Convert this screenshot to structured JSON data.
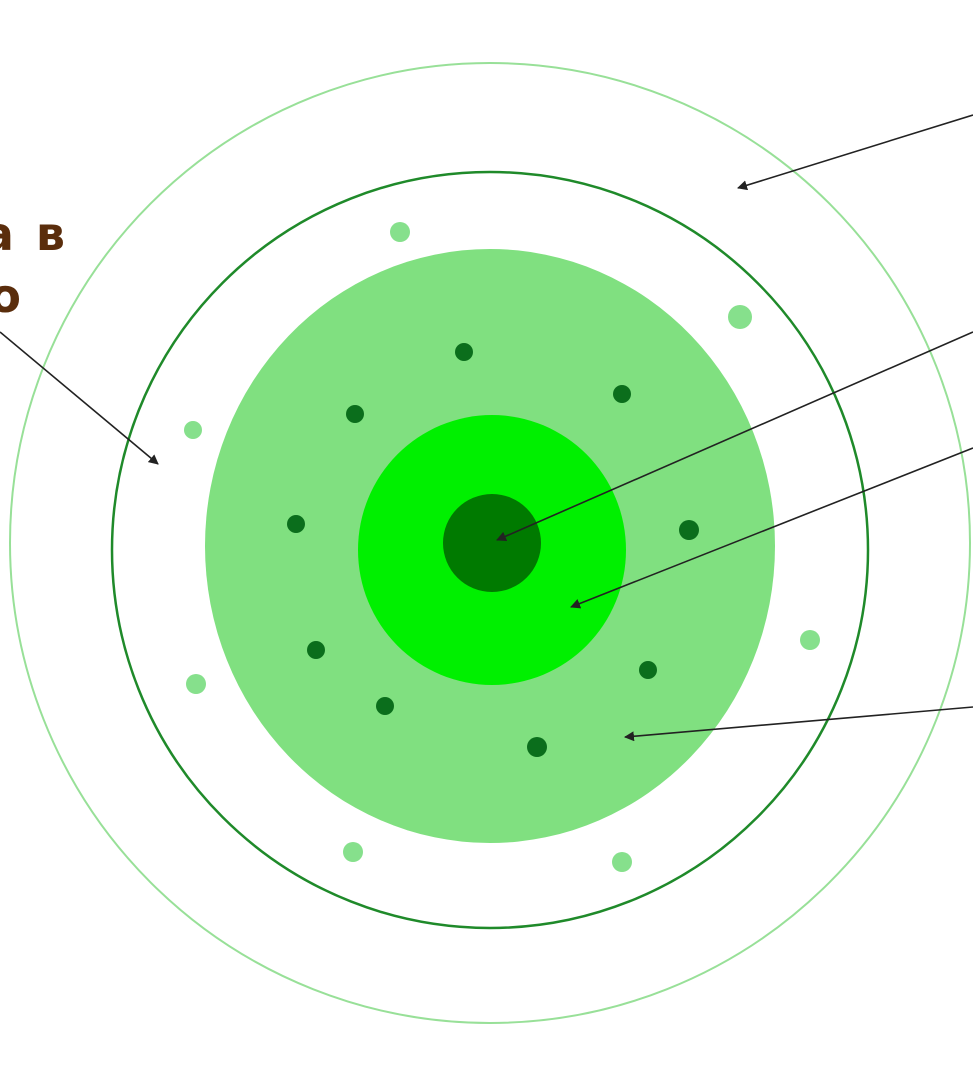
{
  "text": {
    "label_line_1": "а в",
    "label_line_2": "о"
  },
  "colors": {
    "background": "#ffffff",
    "outer_ring": "#98e098",
    "middle_ring": "#1f8a2a",
    "zone_large": "#80e080",
    "zone_bright": "#00f000",
    "core": "#007a00",
    "dot_dark": "#0b6e1c",
    "dot_light": "#86e08c",
    "text": "#5a2d0c",
    "arrow": "#222222"
  },
  "icons": {
    "arrowhead": "filled-triangle-arrowhead"
  }
}
